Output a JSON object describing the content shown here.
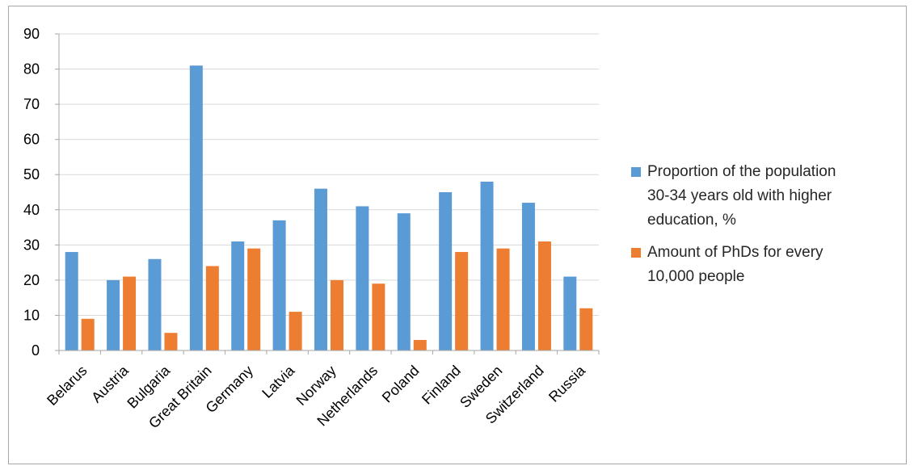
{
  "chart_data": {
    "type": "bar",
    "title": "",
    "xlabel": "",
    "ylabel": "",
    "ylim": [
      0,
      90
    ],
    "yticks": [
      "0",
      "10",
      "20",
      "30",
      "40",
      "50",
      "60",
      "70",
      "80",
      "90"
    ],
    "grid": true,
    "legend_position": "right",
    "categories": [
      "Belarus",
      "Austria",
      "Bulgaria",
      "Great Britain",
      "Germany",
      "Latvia",
      "Norway",
      "Netherlands",
      "Poland",
      "Finland",
      "Sweden",
      "Switzerland",
      "Russia"
    ],
    "series": [
      {
        "name": "Proportion of the population 30-34 years old with higher education, %",
        "legend_lines": [
          "Proportion of the population",
          "30-34 years old with higher",
          "education, %"
        ],
        "color": "#5b9bd5",
        "values": [
          28,
          20,
          26,
          81,
          31,
          37,
          46,
          41,
          39,
          45,
          48,
          42,
          21
        ]
      },
      {
        "name": "Amount of PhDs for every 10,000 people",
        "legend_lines": [
          "Amount of PhDs for every",
          "10,000 people"
        ],
        "color": "#ed7d31",
        "values": [
          9,
          21,
          5,
          24,
          29,
          11,
          20,
          19,
          3,
          28,
          29,
          31,
          12
        ]
      }
    ]
  }
}
